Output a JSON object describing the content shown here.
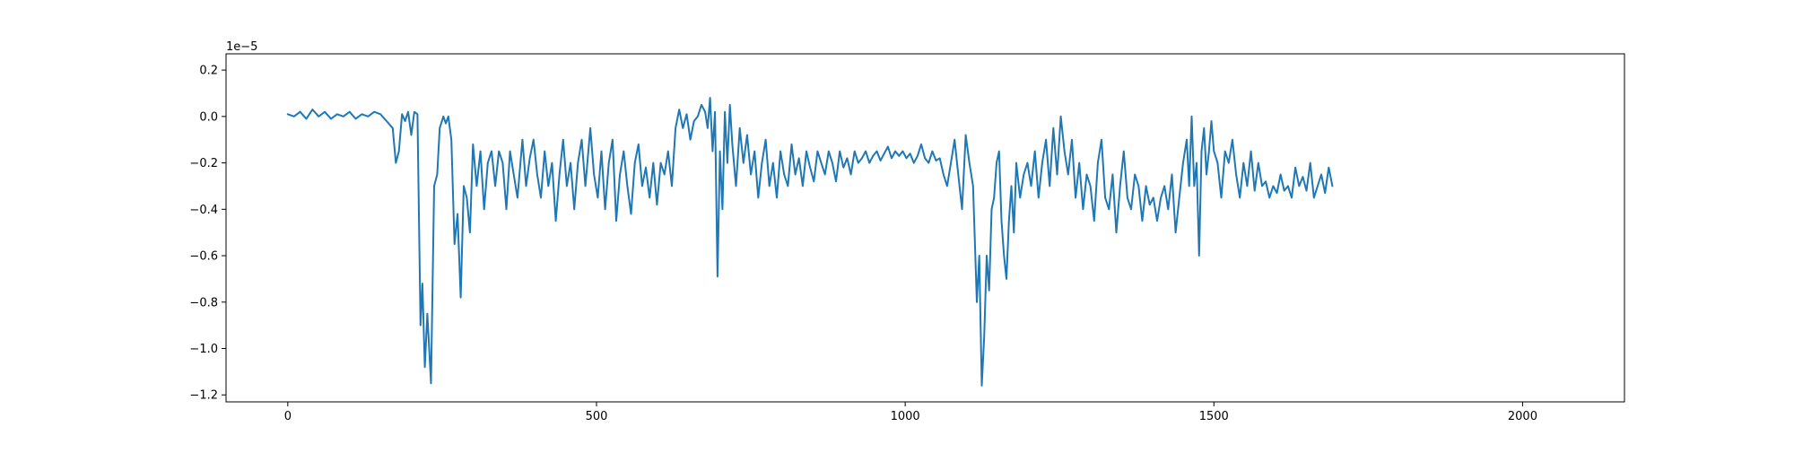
{
  "chart_data": {
    "type": "line",
    "title": "",
    "xlabel": "",
    "ylabel": "",
    "y_offset_label": "1e−5",
    "xlim": [
      -100,
      2165
    ],
    "ylim": [
      -1.23,
      0.27
    ],
    "x_ticks": [
      0,
      500,
      1000,
      1500,
      2000
    ],
    "x_tick_labels": [
      "0",
      "500",
      "1000",
      "1500",
      "2000"
    ],
    "y_ticks": [
      0.2,
      0.0,
      -0.2,
      -0.4,
      -0.6,
      -0.8,
      -1.0,
      -1.2
    ],
    "y_tick_labels": [
      "0.2",
      "0.0",
      "−0.2",
      "−0.4",
      "−0.6",
      "−0.8",
      "−1.0",
      "−1.2"
    ],
    "grid": false,
    "legend": "none",
    "series": [
      {
        "color": "#1f77b4",
        "points": [
          [
            0,
            0.01
          ],
          [
            10,
            0.0
          ],
          [
            20,
            0.02
          ],
          [
            30,
            -0.01
          ],
          [
            40,
            0.03
          ],
          [
            50,
            0.0
          ],
          [
            60,
            0.02
          ],
          [
            70,
            -0.01
          ],
          [
            80,
            0.01
          ],
          [
            90,
            0.0
          ],
          [
            100,
            0.02
          ],
          [
            110,
            -0.01
          ],
          [
            120,
            0.01
          ],
          [
            130,
            0.0
          ],
          [
            140,
            0.02
          ],
          [
            150,
            0.01
          ],
          [
            160,
            -0.02
          ],
          [
            170,
            -0.05
          ],
          [
            175,
            -0.2
          ],
          [
            180,
            -0.15
          ],
          [
            185,
            0.01
          ],
          [
            190,
            -0.02
          ],
          [
            195,
            0.02
          ],
          [
            200,
            -0.08
          ],
          [
            205,
            0.02
          ],
          [
            210,
            0.01
          ],
          [
            215,
            -0.9
          ],
          [
            218,
            -0.72
          ],
          [
            222,
            -1.08
          ],
          [
            226,
            -0.85
          ],
          [
            232,
            -1.15
          ],
          [
            237,
            -0.3
          ],
          [
            242,
            -0.25
          ],
          [
            246,
            -0.05
          ],
          [
            252,
            0.0
          ],
          [
            256,
            -0.03
          ],
          [
            260,
            0.0
          ],
          [
            265,
            -0.1
          ],
          [
            270,
            -0.55
          ],
          [
            275,
            -0.42
          ],
          [
            280,
            -0.78
          ],
          [
            285,
            -0.3
          ],
          [
            290,
            -0.35
          ],
          [
            295,
            -0.5
          ],
          [
            300,
            -0.12
          ],
          [
            306,
            -0.3
          ],
          [
            312,
            -0.15
          ],
          [
            318,
            -0.4
          ],
          [
            324,
            -0.2
          ],
          [
            330,
            -0.15
          ],
          [
            336,
            -0.3
          ],
          [
            342,
            -0.15
          ],
          [
            348,
            -0.2
          ],
          [
            354,
            -0.4
          ],
          [
            360,
            -0.15
          ],
          [
            366,
            -0.25
          ],
          [
            372,
            -0.35
          ],
          [
            380,
            -0.1
          ],
          [
            386,
            -0.3
          ],
          [
            392,
            -0.18
          ],
          [
            398,
            -0.1
          ],
          [
            404,
            -0.25
          ],
          [
            410,
            -0.35
          ],
          [
            416,
            -0.15
          ],
          [
            422,
            -0.3
          ],
          [
            428,
            -0.2
          ],
          [
            434,
            -0.45
          ],
          [
            440,
            -0.25
          ],
          [
            446,
            -0.1
          ],
          [
            452,
            -0.3
          ],
          [
            458,
            -0.2
          ],
          [
            464,
            -0.4
          ],
          [
            470,
            -0.2
          ],
          [
            476,
            -0.1
          ],
          [
            482,
            -0.3
          ],
          [
            490,
            -0.05
          ],
          [
            496,
            -0.25
          ],
          [
            502,
            -0.35
          ],
          [
            508,
            -0.15
          ],
          [
            514,
            -0.4
          ],
          [
            520,
            -0.2
          ],
          [
            526,
            -0.1
          ],
          [
            532,
            -0.45
          ],
          [
            538,
            -0.25
          ],
          [
            544,
            -0.15
          ],
          [
            550,
            -0.3
          ],
          [
            556,
            -0.42
          ],
          [
            562,
            -0.2
          ],
          [
            568,
            -0.12
          ],
          [
            574,
            -0.3
          ],
          [
            580,
            -0.22
          ],
          [
            586,
            -0.35
          ],
          [
            592,
            -0.2
          ],
          [
            598,
            -0.38
          ],
          [
            604,
            -0.2
          ],
          [
            610,
            -0.25
          ],
          [
            616,
            -0.15
          ],
          [
            622,
            -0.3
          ],
          [
            628,
            -0.05
          ],
          [
            634,
            0.03
          ],
          [
            640,
            -0.05
          ],
          [
            646,
            0.01
          ],
          [
            652,
            -0.1
          ],
          [
            658,
            -0.02
          ],
          [
            664,
            0.0
          ],
          [
            670,
            0.05
          ],
          [
            676,
            0.02
          ],
          [
            680,
            -0.05
          ],
          [
            684,
            0.08
          ],
          [
            688,
            -0.15
          ],
          [
            692,
            0.02
          ],
          [
            696,
            -0.69
          ],
          [
            700,
            -0.15
          ],
          [
            704,
            -0.4
          ],
          [
            708,
            0.02
          ],
          [
            712,
            -0.2
          ],
          [
            716,
            0.05
          ],
          [
            720,
            -0.12
          ],
          [
            726,
            -0.3
          ],
          [
            732,
            -0.05
          ],
          [
            738,
            -0.2
          ],
          [
            744,
            -0.08
          ],
          [
            750,
            -0.25
          ],
          [
            756,
            -0.15
          ],
          [
            762,
            -0.35
          ],
          [
            768,
            -0.2
          ],
          [
            774,
            -0.1
          ],
          [
            780,
            -0.3
          ],
          [
            786,
            -0.2
          ],
          [
            792,
            -0.35
          ],
          [
            798,
            -0.15
          ],
          [
            804,
            -0.25
          ],
          [
            810,
            -0.3
          ],
          [
            816,
            -0.12
          ],
          [
            822,
            -0.25
          ],
          [
            828,
            -0.18
          ],
          [
            834,
            -0.3
          ],
          [
            840,
            -0.15
          ],
          [
            846,
            -0.22
          ],
          [
            852,
            -0.28
          ],
          [
            858,
            -0.15
          ],
          [
            864,
            -0.2
          ],
          [
            870,
            -0.25
          ],
          [
            876,
            -0.15
          ],
          [
            882,
            -0.2
          ],
          [
            888,
            -0.28
          ],
          [
            894,
            -0.15
          ],
          [
            900,
            -0.22
          ],
          [
            906,
            -0.18
          ],
          [
            912,
            -0.25
          ],
          [
            918,
            -0.15
          ],
          [
            924,
            -0.2
          ],
          [
            930,
            -0.18
          ],
          [
            936,
            -0.15
          ],
          [
            942,
            -0.2
          ],
          [
            948,
            -0.17
          ],
          [
            954,
            -0.15
          ],
          [
            960,
            -0.19
          ],
          [
            966,
            -0.16
          ],
          [
            972,
            -0.13
          ],
          [
            978,
            -0.18
          ],
          [
            984,
            -0.15
          ],
          [
            990,
            -0.17
          ],
          [
            996,
            -0.15
          ],
          [
            1002,
            -0.18
          ],
          [
            1008,
            -0.16
          ],
          [
            1014,
            -0.2
          ],
          [
            1020,
            -0.17
          ],
          [
            1026,
            -0.12
          ],
          [
            1032,
            -0.18
          ],
          [
            1038,
            -0.2
          ],
          [
            1044,
            -0.15
          ],
          [
            1050,
            -0.19
          ],
          [
            1056,
            -0.18
          ],
          [
            1062,
            -0.25
          ],
          [
            1068,
            -0.3
          ],
          [
            1074,
            -0.2
          ],
          [
            1080,
            -0.1
          ],
          [
            1086,
            -0.25
          ],
          [
            1092,
            -0.4
          ],
          [
            1098,
            -0.08
          ],
          [
            1104,
            -0.2
          ],
          [
            1110,
            -0.3
          ],
          [
            1116,
            -0.8
          ],
          [
            1120,
            -0.6
          ],
          [
            1124,
            -1.16
          ],
          [
            1128,
            -0.95
          ],
          [
            1132,
            -0.6
          ],
          [
            1136,
            -0.75
          ],
          [
            1140,
            -0.4
          ],
          [
            1144,
            -0.35
          ],
          [
            1148,
            -0.2
          ],
          [
            1152,
            -0.15
          ],
          [
            1156,
            -0.45
          ],
          [
            1160,
            -0.6
          ],
          [
            1164,
            -0.7
          ],
          [
            1168,
            -0.45
          ],
          [
            1172,
            -0.3
          ],
          [
            1176,
            -0.5
          ],
          [
            1180,
            -0.2
          ],
          [
            1186,
            -0.35
          ],
          [
            1192,
            -0.25
          ],
          [
            1198,
            -0.2
          ],
          [
            1204,
            -0.3
          ],
          [
            1210,
            -0.15
          ],
          [
            1216,
            -0.35
          ],
          [
            1222,
            -0.2
          ],
          [
            1228,
            -0.1
          ],
          [
            1234,
            -0.3
          ],
          [
            1240,
            -0.05
          ],
          [
            1246,
            -0.25
          ],
          [
            1252,
            0.0
          ],
          [
            1258,
            -0.15
          ],
          [
            1264,
            -0.25
          ],
          [
            1270,
            -0.1
          ],
          [
            1276,
            -0.35
          ],
          [
            1282,
            -0.2
          ],
          [
            1288,
            -0.4
          ],
          [
            1294,
            -0.25
          ],
          [
            1300,
            -0.3
          ],
          [
            1306,
            -0.45
          ],
          [
            1312,
            -0.2
          ],
          [
            1318,
            -0.1
          ],
          [
            1324,
            -0.35
          ],
          [
            1330,
            -0.4
          ],
          [
            1336,
            -0.25
          ],
          [
            1342,
            -0.5
          ],
          [
            1348,
            -0.3
          ],
          [
            1354,
            -0.15
          ],
          [
            1360,
            -0.35
          ],
          [
            1366,
            -0.4
          ],
          [
            1372,
            -0.25
          ],
          [
            1378,
            -0.3
          ],
          [
            1384,
            -0.45
          ],
          [
            1390,
            -0.3
          ],
          [
            1396,
            -0.38
          ],
          [
            1402,
            -0.35
          ],
          [
            1408,
            -0.45
          ],
          [
            1414,
            -0.35
          ],
          [
            1420,
            -0.3
          ],
          [
            1426,
            -0.4
          ],
          [
            1432,
            -0.25
          ],
          [
            1438,
            -0.5
          ],
          [
            1444,
            -0.35
          ],
          [
            1450,
            -0.2
          ],
          [
            1456,
            -0.1
          ],
          [
            1460,
            -0.3
          ],
          [
            1464,
            0.0
          ],
          [
            1468,
            -0.3
          ],
          [
            1472,
            -0.2
          ],
          [
            1476,
            -0.6
          ],
          [
            1480,
            -0.15
          ],
          [
            1484,
            -0.05
          ],
          [
            1488,
            -0.25
          ],
          [
            1492,
            -0.15
          ],
          [
            1496,
            -0.02
          ],
          [
            1500,
            -0.15
          ],
          [
            1506,
            -0.2
          ],
          [
            1512,
            -0.35
          ],
          [
            1518,
            -0.15
          ],
          [
            1524,
            -0.2
          ],
          [
            1530,
            -0.1
          ],
          [
            1536,
            -0.25
          ],
          [
            1542,
            -0.35
          ],
          [
            1548,
            -0.2
          ],
          [
            1554,
            -0.3
          ],
          [
            1560,
            -0.15
          ],
          [
            1566,
            -0.32
          ],
          [
            1572,
            -0.2
          ],
          [
            1578,
            -0.3
          ],
          [
            1584,
            -0.28
          ],
          [
            1590,
            -0.35
          ],
          [
            1596,
            -0.3
          ],
          [
            1602,
            -0.33
          ],
          [
            1608,
            -0.25
          ],
          [
            1614,
            -0.32
          ],
          [
            1620,
            -0.3
          ],
          [
            1626,
            -0.35
          ],
          [
            1632,
            -0.22
          ],
          [
            1638,
            -0.3
          ],
          [
            1644,
            -0.26
          ],
          [
            1650,
            -0.32
          ],
          [
            1656,
            -0.2
          ],
          [
            1662,
            -0.35
          ],
          [
            1668,
            -0.3
          ],
          [
            1674,
            -0.25
          ],
          [
            1680,
            -0.33
          ],
          [
            1686,
            -0.22
          ],
          [
            1692,
            -0.3
          ]
        ]
      }
    ]
  }
}
